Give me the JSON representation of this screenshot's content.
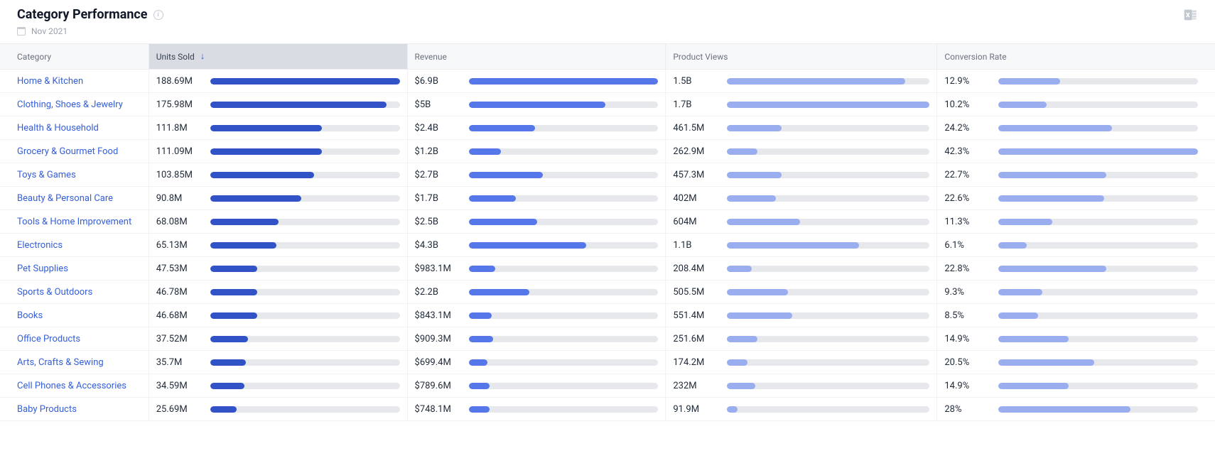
{
  "header": {
    "title": "Category Performance",
    "date_label": "Nov 2021"
  },
  "colors": {
    "background": "#ffffff",
    "header_row_bg": "#f7f8fa",
    "sorted_header_bg": "#d9dde3",
    "border": "#ebedf0",
    "row_border": "#f1f2f4",
    "text_primary": "#1f2937",
    "text_secondary": "#6b7280",
    "link": "#355fd9",
    "bar_track": "#e6e8ec",
    "bar_units": "#3153c7",
    "bar_revenue": "#5577ea",
    "bar_views": "#9aadef",
    "bar_conv": "#9aadef",
    "sort_arrow": "#3059d1",
    "muted_icon": "#b7bec8"
  },
  "table": {
    "columns": [
      {
        "key": "category",
        "label": "Category",
        "sorted": false
      },
      {
        "key": "units_sold",
        "label": "Units Sold",
        "sorted": true,
        "sort_dir": "desc"
      },
      {
        "key": "revenue",
        "label": "Revenue",
        "sorted": false
      },
      {
        "key": "product_views",
        "label": "Product Views",
        "sorted": false
      },
      {
        "key": "conversion_rate",
        "label": "Conversion Rate",
        "sorted": false
      }
    ],
    "rows": [
      {
        "category": "Home & Kitchen",
        "units": {
          "label": "188.69M",
          "pct": 100
        },
        "revenue": {
          "label": "$6.9B",
          "pct": 100
        },
        "views": {
          "label": "1.5B",
          "pct": 88
        },
        "conv": {
          "label": "12.9%",
          "pct": 31
        }
      },
      {
        "category": "Clothing, Shoes & Jewelry",
        "units": {
          "label": "175.98M",
          "pct": 93
        },
        "revenue": {
          "label": "$5B",
          "pct": 72
        },
        "views": {
          "label": "1.7B",
          "pct": 100
        },
        "conv": {
          "label": "10.2%",
          "pct": 24
        }
      },
      {
        "category": "Health & Household",
        "units": {
          "label": "111.8M",
          "pct": 59
        },
        "revenue": {
          "label": "$2.4B",
          "pct": 35
        },
        "views": {
          "label": "461.5M",
          "pct": 27
        },
        "conv": {
          "label": "24.2%",
          "pct": 57
        }
      },
      {
        "category": "Grocery & Gourmet Food",
        "units": {
          "label": "111.09M",
          "pct": 59
        },
        "revenue": {
          "label": "$1.2B",
          "pct": 17
        },
        "views": {
          "label": "262.9M",
          "pct": 15
        },
        "conv": {
          "label": "42.3%",
          "pct": 100
        }
      },
      {
        "category": "Toys & Games",
        "units": {
          "label": "103.85M",
          "pct": 55
        },
        "revenue": {
          "label": "$2.7B",
          "pct": 39
        },
        "views": {
          "label": "457.3M",
          "pct": 27
        },
        "conv": {
          "label": "22.7%",
          "pct": 54
        }
      },
      {
        "category": "Beauty & Personal Care",
        "units": {
          "label": "90.8M",
          "pct": 48
        },
        "revenue": {
          "label": "$1.7B",
          "pct": 25
        },
        "views": {
          "label": "402M",
          "pct": 24
        },
        "conv": {
          "label": "22.6%",
          "pct": 53
        }
      },
      {
        "category": "Tools & Home Improvement",
        "units": {
          "label": "68.08M",
          "pct": 36
        },
        "revenue": {
          "label": "$2.5B",
          "pct": 36
        },
        "views": {
          "label": "604M",
          "pct": 36
        },
        "conv": {
          "label": "11.3%",
          "pct": 27
        }
      },
      {
        "category": "Electronics",
        "units": {
          "label": "65.13M",
          "pct": 35
        },
        "revenue": {
          "label": "$4.3B",
          "pct": 62
        },
        "views": {
          "label": "1.1B",
          "pct": 65
        },
        "conv": {
          "label": "6.1%",
          "pct": 14
        }
      },
      {
        "category": "Pet Supplies",
        "units": {
          "label": "47.53M",
          "pct": 25
        },
        "revenue": {
          "label": "$983.1M",
          "pct": 14
        },
        "views": {
          "label": "208.4M",
          "pct": 12
        },
        "conv": {
          "label": "22.8%",
          "pct": 54
        }
      },
      {
        "category": "Sports & Outdoors",
        "units": {
          "label": "46.78M",
          "pct": 25
        },
        "revenue": {
          "label": "$2.2B",
          "pct": 32
        },
        "views": {
          "label": "505.5M",
          "pct": 30
        },
        "conv": {
          "label": "9.3%",
          "pct": 22
        }
      },
      {
        "category": "Books",
        "units": {
          "label": "46.68M",
          "pct": 25
        },
        "revenue": {
          "label": "$843.1M",
          "pct": 12
        },
        "views": {
          "label": "551.4M",
          "pct": 32
        },
        "conv": {
          "label": "8.5%",
          "pct": 20
        }
      },
      {
        "category": "Office Products",
        "units": {
          "label": "37.52M",
          "pct": 20
        },
        "revenue": {
          "label": "$909.3M",
          "pct": 13
        },
        "views": {
          "label": "251.6M",
          "pct": 15
        },
        "conv": {
          "label": "14.9%",
          "pct": 35
        }
      },
      {
        "category": "Arts, Crafts & Sewing",
        "units": {
          "label": "35.7M",
          "pct": 19
        },
        "revenue": {
          "label": "$699.4M",
          "pct": 10
        },
        "views": {
          "label": "174.2M",
          "pct": 10
        },
        "conv": {
          "label": "20.5%",
          "pct": 48
        }
      },
      {
        "category": "Cell Phones & Accessories",
        "units": {
          "label": "34.59M",
          "pct": 18
        },
        "revenue": {
          "label": "$789.6M",
          "pct": 11
        },
        "views": {
          "label": "232M",
          "pct": 14
        },
        "conv": {
          "label": "14.9%",
          "pct": 35
        }
      },
      {
        "category": "Baby Products",
        "units": {
          "label": "25.69M",
          "pct": 14
        },
        "revenue": {
          "label": "$748.1M",
          "pct": 11
        },
        "views": {
          "label": "91.9M",
          "pct": 5
        },
        "conv": {
          "label": "28%",
          "pct": 66
        }
      }
    ]
  }
}
